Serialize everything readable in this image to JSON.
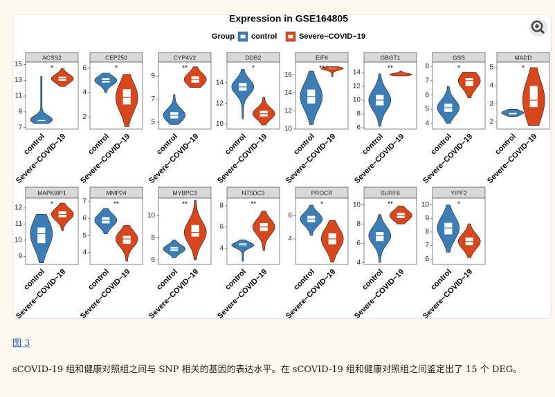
{
  "chart_data": {
    "type": "violin",
    "title": "Expression in GSE164805",
    "legend_title": "Group",
    "groups": [
      {
        "name": "control",
        "color": "#3b7db4"
      },
      {
        "name": "Severe−COVID−19",
        "color": "#d8461c"
      }
    ],
    "panels": [
      {
        "name": "ACSS2",
        "ylim": [
          6.8,
          15.3
        ],
        "yticks": [
          7,
          9,
          11,
          13,
          15
        ],
        "significance": "*",
        "values": [
          [
            7.5,
            7.8,
            8.0,
            8.1,
            13.5
          ],
          [
            12.2,
            12.9,
            13.2,
            13.5,
            14.5
          ]
        ]
      },
      {
        "name": "CEP250",
        "ylim": [
          1,
          6.5
        ],
        "yticks": [
          2,
          4,
          6
        ],
        "significance": "*",
        "values": [
          [
            4.0,
            4.8,
            5.0,
            5.2,
            5.6
          ],
          [
            1.2,
            3.0,
            3.6,
            4.3,
            5.5
          ]
        ]
      },
      {
        "name": "CYP4V2",
        "ylim": [
          4.4,
          10.2
        ],
        "yticks": [
          5,
          7,
          9
        ],
        "significance": "**",
        "values": [
          [
            4.8,
            5.3,
            5.6,
            5.9,
            7.4
          ],
          [
            8.0,
            8.4,
            8.7,
            9.0,
            9.8
          ]
        ]
      },
      {
        "name": "DDB2",
        "ylim": [
          9.5,
          16
        ],
        "yticks": [
          10,
          12,
          14
        ],
        "significance": "*",
        "values": [
          [
            10.5,
            13.2,
            13.6,
            14.0,
            15.3
          ],
          [
            9.9,
            10.7,
            11.0,
            11.3,
            12.6
          ]
        ]
      },
      {
        "name": "EIF6",
        "ylim": [
          10,
          17.4
        ],
        "yticks": [
          10,
          12,
          14,
          16
        ],
        "significance": "**",
        "values": [
          [
            10.5,
            12.8,
            13.6,
            14.4,
            16.4
          ],
          [
            15.8,
            16.6,
            16.7,
            16.8,
            16.9
          ]
        ]
      },
      {
        "name": "GBGT1",
        "ylim": [
          5.8,
          15.5
        ],
        "yticks": [
          6,
          8,
          10,
          12,
          14
        ],
        "significance": "**",
        "values": [
          [
            6.2,
            9.2,
            10.0,
            10.8,
            13.8
          ],
          [
            13.5,
            13.6,
            13.7,
            13.8,
            14.2
          ]
        ]
      },
      {
        "name": "GSS",
        "ylim": [
          3.6,
          8.3
        ],
        "yticks": [
          4,
          5,
          6,
          7,
          8
        ],
        "significance": "*",
        "values": [
          [
            4.0,
            4.8,
            5.1,
            5.4,
            6.6
          ],
          [
            5.8,
            6.6,
            7.0,
            7.2,
            7.6
          ]
        ]
      },
      {
        "name": "MADD",
        "ylim": [
          1.6,
          5.3
        ],
        "yticks": [
          2,
          3,
          4,
          5
        ],
        "significance": "*",
        "values": [
          [
            2.3,
            2.4,
            2.5,
            2.55,
            2.7
          ],
          [
            1.8,
            2.8,
            3.2,
            4.0,
            5.0
          ]
        ]
      },
      {
        "name": "MAPK8IP1",
        "ylim": [
          8.5,
          12.6
        ],
        "yticks": [
          9,
          10,
          11,
          12
        ],
        "significance": "*",
        "values": [
          [
            8.6,
            9.8,
            10.4,
            10.8,
            11.6
          ],
          [
            10.6,
            11.4,
            11.6,
            11.8,
            12.3
          ]
        ]
      },
      {
        "name": "MMP24",
        "ylim": [
          3.3,
          7.2
        ],
        "yticks": [
          4,
          5,
          6,
          7
        ],
        "significance": "**",
        "values": [
          [
            5.1,
            5.7,
            5.9,
            6.1,
            6.6
          ],
          [
            3.5,
            4.5,
            4.8,
            5.0,
            5.6
          ]
        ]
      },
      {
        "name": "MYBPC3",
        "ylim": [
          5.6,
          11.6
        ],
        "yticks": [
          6,
          8,
          10
        ],
        "significance": "**",
        "values": [
          [
            6.2,
            6.8,
            7.0,
            7.2,
            7.8
          ],
          [
            6.0,
            8.1,
            8.5,
            9.2,
            11.4
          ]
        ]
      },
      {
        "name": "NT5DC3",
        "ylim": [
          2.5,
          8.7
        ],
        "yticks": [
          4,
          6,
          8
        ],
        "significance": "**",
        "values": [
          [
            2.8,
            4.2,
            4.3,
            4.5,
            4.8
          ],
          [
            3.8,
            5.6,
            6.0,
            6.4,
            7.5
          ]
        ]
      },
      {
        "name": "PROCR",
        "ylim": [
          1.8,
          7.5
        ],
        "yticks": [
          4,
          6
        ],
        "significance": "*",
        "values": [
          [
            4.3,
            5.4,
            5.7,
            6.0,
            6.9
          ],
          [
            2.0,
            3.5,
            4.0,
            4.5,
            5.6
          ]
        ]
      },
      {
        "name": "SURF6",
        "ylim": [
          3.8,
          10.7
        ],
        "yticks": [
          4,
          6,
          8,
          10
        ],
        "significance": "**",
        "values": [
          [
            4.0,
            6.2,
            6.8,
            7.2,
            9.0
          ],
          [
            8.0,
            8.6,
            8.9,
            9.2,
            9.9
          ]
        ]
      },
      {
        "name": "YIPF2",
        "ylim": [
          5.6,
          10.5
        ],
        "yticks": [
          6,
          7,
          8,
          9,
          10
        ],
        "significance": "*",
        "values": [
          [
            6.5,
            7.8,
            8.3,
            8.7,
            10.0
          ],
          [
            6.1,
            7.0,
            7.3,
            7.6,
            8.6
          ]
        ]
      }
    ]
  },
  "caption": {
    "label": "图 3",
    "text": "sCOVID-19 组和健康对照组之间与 SNP 相关的基因的表达水平。在 sCOVID-19 组和健康对照组之间鉴定出了 15 个 DEG。"
  }
}
